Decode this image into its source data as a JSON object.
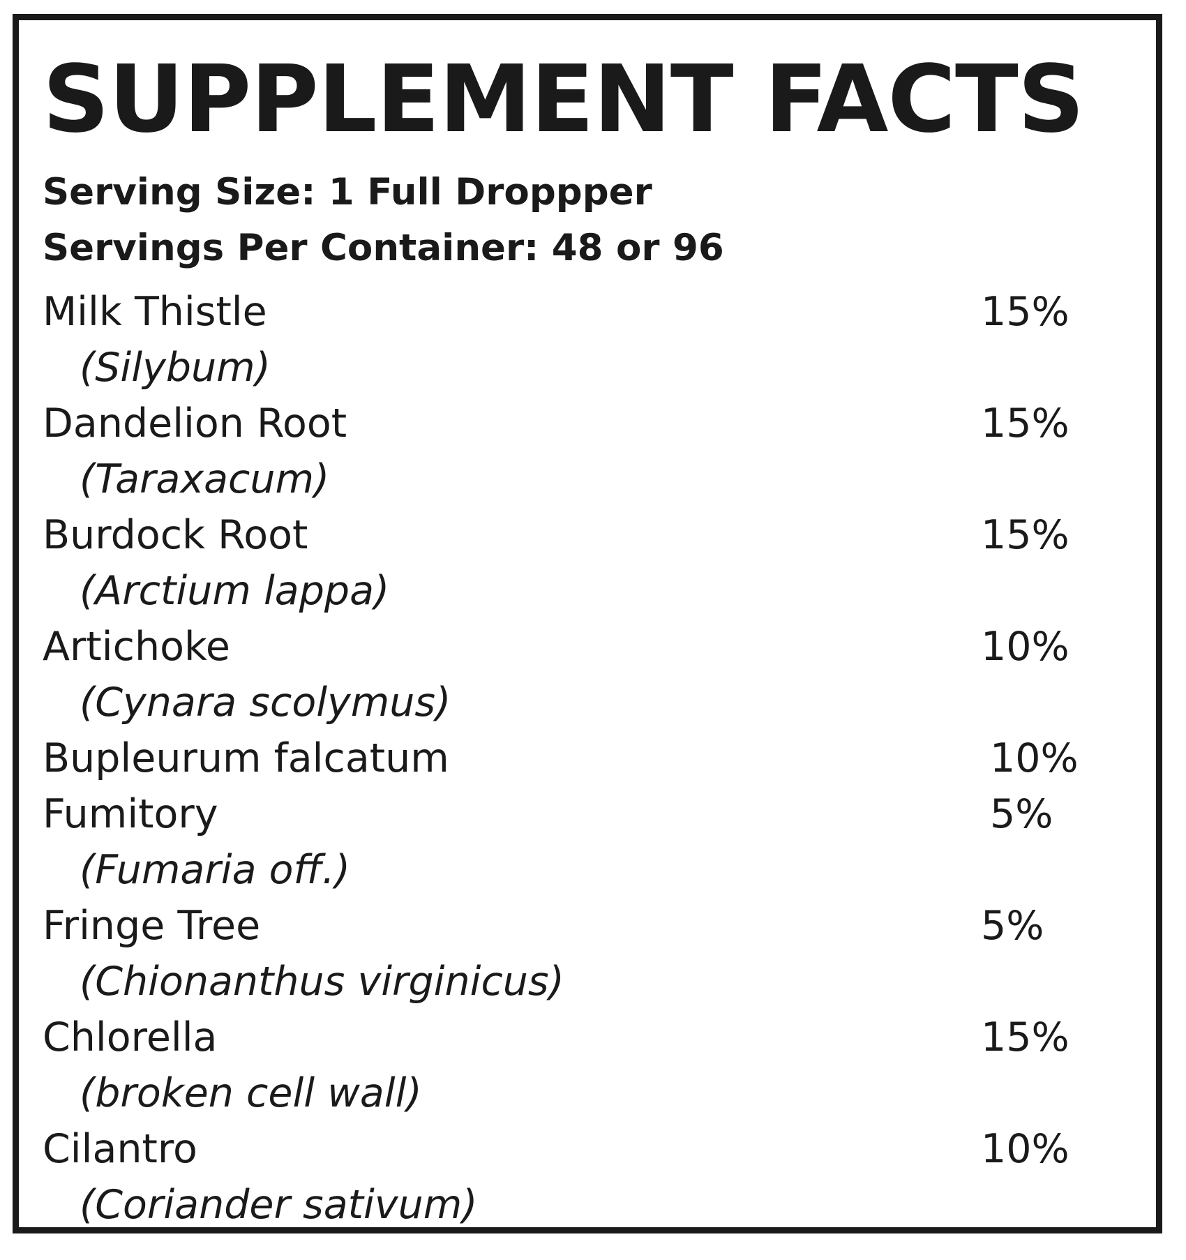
{
  "title": "SUPPLEMENT FACTS",
  "serving_size": "Serving Size: 1 Full Droppper",
  "servings_per_container": "Servings Per Container: 48 or 96",
  "ingredients": [
    {
      "name": "Milk Thistle",
      "latin": "(Silybum)",
      "percent": "15%"
    },
    {
      "name": "Dandelion Root",
      "latin": "(Taraxacum)",
      "percent": "15%"
    },
    {
      "name": "Burdock Root",
      "latin": "(Arctium lappa)",
      "percent": "15%"
    },
    {
      "name": "Artichoke",
      "latin": "(Cynara scolymus)",
      "percent": "10%"
    },
    {
      "name": "Bupleurum falcatum",
      "percent": "10%"
    },
    {
      "name": "Fumitory",
      "latin": "(Fumaria off.)",
      "percent": "5%"
    },
    {
      "name": "Fringe Tree",
      "latin": "(Chionanthus virginicus)",
      "percent": "5%"
    },
    {
      "name": "Chlorella",
      "latin": "(broken cell wall)",
      "percent": "15%"
    },
    {
      "name": "Cilantro",
      "latin": "(Coriander sativum)",
      "percent": "10%"
    }
  ]
}
